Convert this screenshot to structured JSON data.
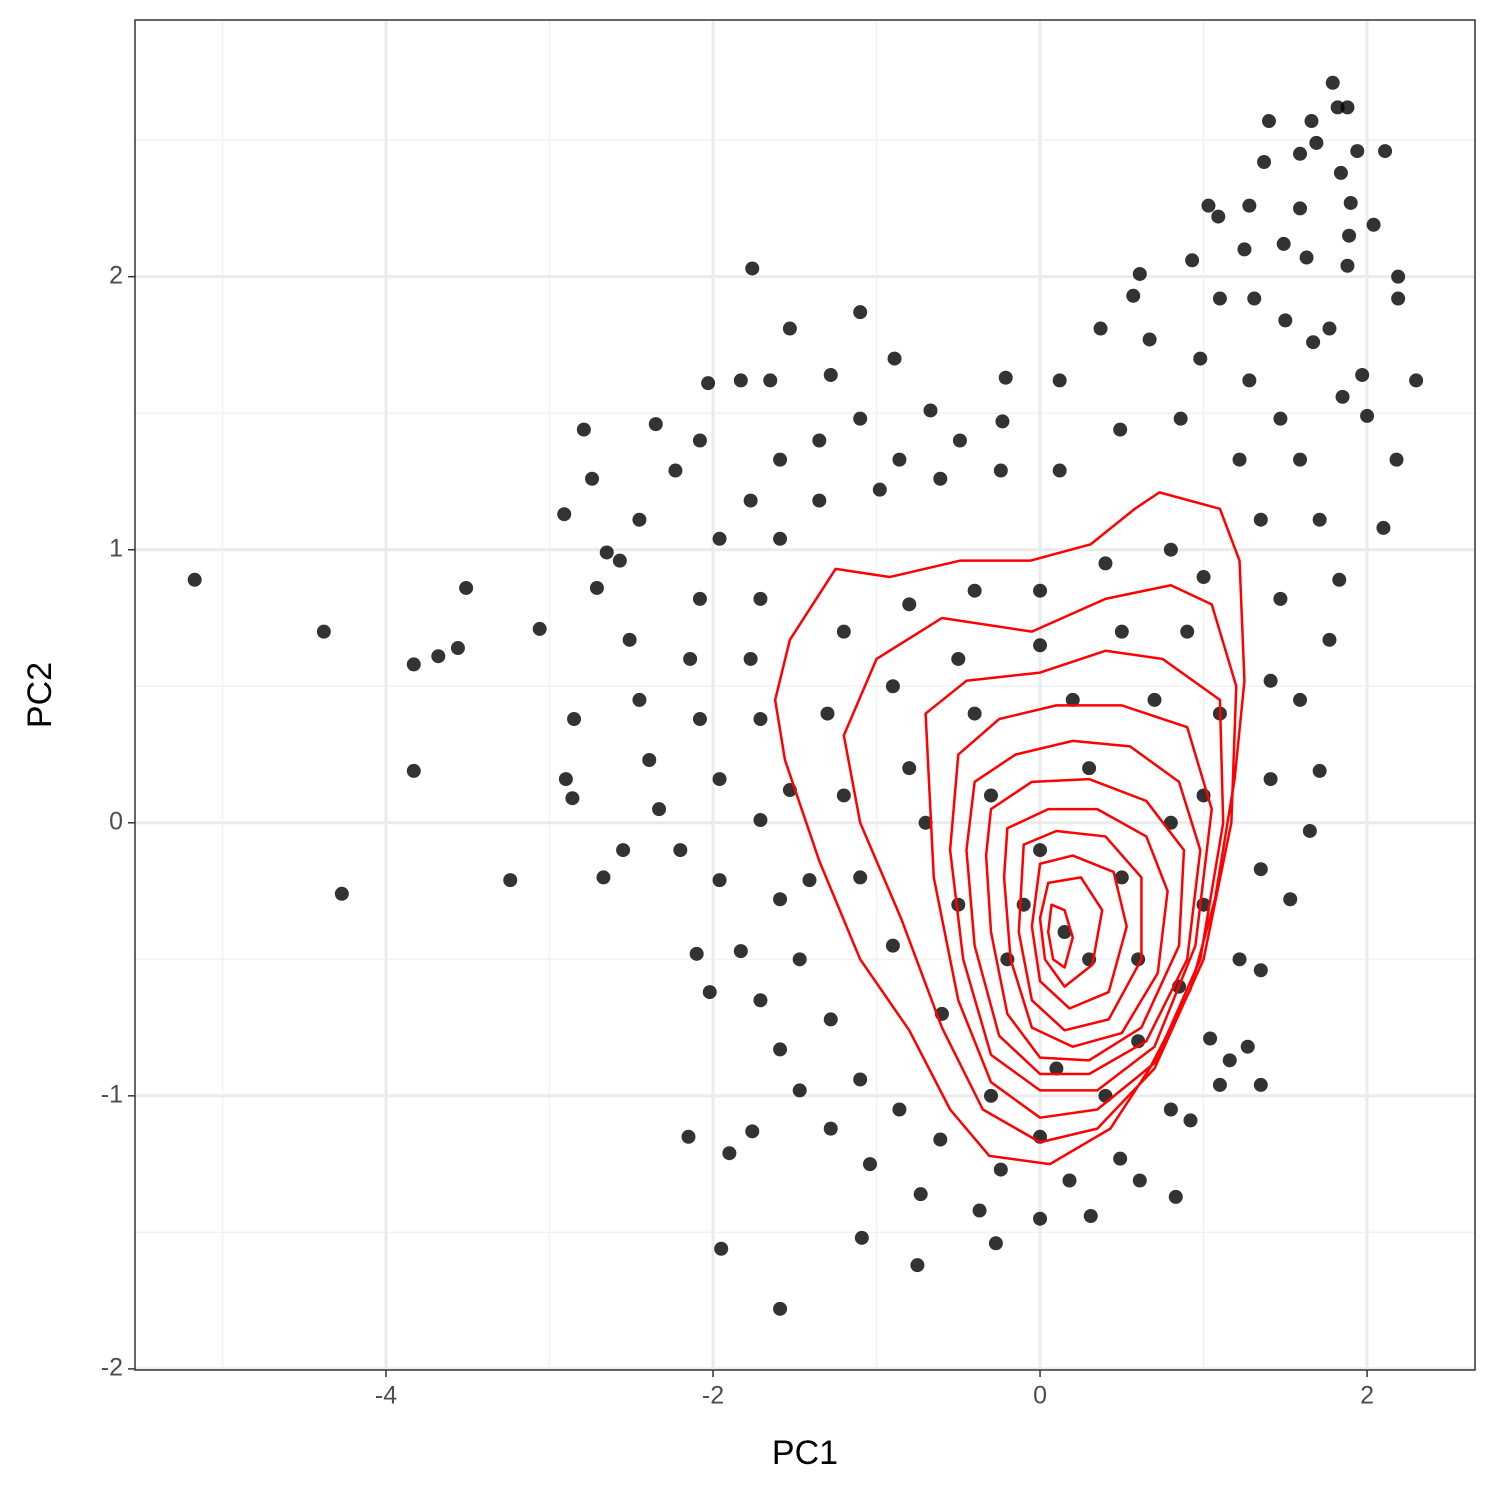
{
  "chart_data": {
    "type": "scatter",
    "x_label": "PC1",
    "y_label": "PC2",
    "xlim": [
      -5.535,
      2.66
    ],
    "ylim": [
      -2.004,
      2.94
    ],
    "xticks": [
      -4,
      -2,
      0,
      2
    ],
    "yticks": [
      -2,
      -1,
      0,
      1,
      2
    ],
    "grid": true,
    "color": "#000000",
    "contour_color": "#ff0000",
    "x": [
      -5.17,
      -4.38,
      -3.83,
      -3.68,
      -3.56,
      -3.51,
      -3.83,
      -4.27,
      -3.24,
      -3.06,
      -2.91,
      -2.79,
      -2.74,
      -2.85,
      -2.9,
      -2.86,
      -2.67,
      -2.55,
      -2.65,
      -2.71,
      -2.35,
      -1.76,
      -1.59,
      -1.95,
      -2.15,
      -2.02,
      -2.1,
      -1.9,
      -1.76,
      -1.09,
      -0.75,
      -0.27,
      0.83,
      1.35,
      1.27,
      1.1,
      1.79,
      1.82,
      1.88,
      1.4,
      1.66,
      1.94,
      2.11,
      1.37,
      1.59,
      1.69,
      1.84,
      1.03,
      1.09,
      1.28,
      1.59,
      1.9,
      2.04,
      1.89,
      1.25,
      1.49,
      1.63,
      1.88,
      2.19,
      2.19,
      2.3,
      2.18,
      2.1,
      2.0,
      1.97,
      1.77,
      1.1,
      0.61,
      0.57,
      0.93,
      1.31,
      1.67,
      1.5,
      1.85,
      -1.83,
      -1.65,
      -1.53,
      -1.1,
      -0.89,
      -1.28,
      -2.03,
      -2.08,
      -2.23,
      -2.45,
      -2.57,
      -2.51,
      -2.45,
      -2.39,
      -2.33,
      -2.2,
      -1.96,
      -1.83,
      -1.71,
      -1.59,
      -1.47,
      -1.28,
      -1.04,
      -0.73,
      -0.37,
      0.0,
      0.31,
      0.61,
      0.92,
      1.16,
      1.35,
      1.53,
      1.65,
      1.71,
      1.59,
      1.77,
      1.83,
      1.71,
      1.59,
      1.47,
      1.28,
      0.98,
      0.67,
      0.37,
      0.12,
      -0.21,
      -0.23,
      -0.49,
      -0.67,
      -0.86,
      -1.1,
      -1.35,
      -1.59,
      -1.77,
      -1.96,
      -2.08,
      -2.14,
      -2.08,
      -1.96,
      -1.71,
      -1.59,
      -1.47,
      -1.28,
      -1.1,
      -0.86,
      -0.61,
      -0.24,
      0.18,
      0.49,
      0.8,
      1.04,
      1.22,
      1.35,
      1.41,
      1.41,
      1.47,
      1.35,
      1.22,
      0.86,
      0.49,
      0.12,
      -0.24,
      -0.61,
      -0.98,
      -1.35,
      -1.59,
      -1.71,
      -1.77,
      -1.71,
      -1.53,
      -1.41,
      -1.2,
      -0.8,
      -0.4,
      0.0,
      0.4,
      0.8,
      1.0,
      -1.3,
      -0.9,
      -0.5,
      0.0,
      0.5,
      0.9,
      1.1,
      -1.2,
      -0.8,
      -0.4,
      0.2,
      0.7,
      1.0,
      -1.1,
      -0.7,
      -0.3,
      0.3,
      0.8,
      1.0,
      -0.9,
      -0.5,
      0.0,
      0.5,
      0.85,
      -0.6,
      -0.2,
      0.3,
      0.6,
      -0.3,
      0.1,
      0.4,
      0.0,
      -0.1,
      0.15,
      0.6
    ],
    "y": [
      0.89,
      0.7,
      0.58,
      0.61,
      0.64,
      0.86,
      0.19,
      -0.26,
      -0.21,
      0.71,
      1.13,
      1.44,
      1.26,
      0.38,
      0.16,
      0.09,
      -0.2,
      -0.1,
      0.99,
      0.86,
      1.46,
      2.03,
      -1.78,
      -1.56,
      -1.15,
      -0.62,
      -0.48,
      -1.21,
      -1.13,
      -1.52,
      -1.62,
      -1.54,
      -1.37,
      -0.96,
      -0.82,
      -0.96,
      2.71,
      2.62,
      2.62,
      2.57,
      2.57,
      2.46,
      2.46,
      2.42,
      2.45,
      2.49,
      2.38,
      2.26,
      2.22,
      2.26,
      2.25,
      2.27,
      2.19,
      2.15,
      2.1,
      2.12,
      2.07,
      2.04,
      2.0,
      1.92,
      1.62,
      1.33,
      1.08,
      1.49,
      1.64,
      1.81,
      1.92,
      2.01,
      1.93,
      2.06,
      1.92,
      1.76,
      1.84,
      1.56,
      1.62,
      1.62,
      1.81,
      1.87,
      1.7,
      1.64,
      1.61,
      1.4,
      1.29,
      1.11,
      0.96,
      0.67,
      0.45,
      0.23,
      0.05,
      -0.1,
      -0.21,
      -0.47,
      -0.65,
      -0.83,
      -0.98,
      -1.12,
      -1.25,
      -1.36,
      -1.42,
      -1.45,
      -1.44,
      -1.31,
      -1.09,
      -0.87,
      -0.54,
      -0.28,
      -0.03,
      0.19,
      0.45,
      0.67,
      0.89,
      1.11,
      1.33,
      1.48,
      1.62,
      1.7,
      1.77,
      1.81,
      1.62,
      1.63,
      1.47,
      1.4,
      1.51,
      1.33,
      1.48,
      1.4,
      1.33,
      1.18,
      1.04,
      0.82,
      0.6,
      0.38,
      0.16,
      0.01,
      -0.28,
      -0.5,
      -0.72,
      -0.94,
      -1.05,
      -1.16,
      -1.27,
      -1.31,
      -1.23,
      -1.05,
      -0.79,
      -0.5,
      -0.17,
      0.16,
      0.52,
      0.82,
      1.11,
      1.33,
      1.48,
      1.44,
      1.29,
      1.29,
      1.26,
      1.22,
      1.18,
      1.04,
      0.82,
      0.6,
      0.38,
      0.12,
      -0.21,
      0.7,
      0.8,
      0.85,
      0.85,
      0.95,
      1.0,
      0.9,
      0.4,
      0.5,
      0.6,
      0.65,
      0.7,
      0.7,
      0.4,
      0.1,
      0.2,
      0.4,
      0.45,
      0.45,
      0.1,
      -0.2,
      0.0,
      0.1,
      0.2,
      0.0,
      -0.3,
      -0.45,
      -0.3,
      -0.1,
      -0.2,
      -0.6,
      -0.7,
      -0.5,
      -0.5,
      -0.8,
      -1.0,
      -0.9,
      -1.0,
      -1.15,
      -0.3,
      -0.4,
      -0.5
    ],
    "contours": [
      {
        "x": [
          -1.62,
          -1.53,
          -1.25,
          -0.92,
          -0.49,
          -0.06,
          0.31,
          0.58,
          0.73,
          1.1,
          1.22,
          1.25,
          1.19,
          1.07,
          0.92,
          0.67,
          0.43,
          0.06,
          -0.31,
          -0.55,
          -0.8,
          -1.1,
          -1.35,
          -1.56
        ],
        "y": [
          0.45,
          0.67,
          0.93,
          0.9,
          0.96,
          0.96,
          1.02,
          1.15,
          1.21,
          1.15,
          0.96,
          0.52,
          0.16,
          -0.28,
          -0.61,
          -0.9,
          -1.12,
          -1.25,
          -1.22,
          -1.05,
          -0.76,
          -0.5,
          -0.14,
          0.23
        ]
      },
      {
        "x": [
          -1.2,
          -1.0,
          -0.6,
          -0.05,
          0.4,
          0.8,
          1.05,
          1.2,
          1.17,
          1.0,
          0.7,
          0.35,
          0.0,
          -0.35,
          -0.6,
          -0.85,
          -1.1
        ],
        "y": [
          0.32,
          0.6,
          0.75,
          0.7,
          0.82,
          0.87,
          0.8,
          0.5,
          0.0,
          -0.5,
          -0.9,
          -1.12,
          -1.17,
          -1.05,
          -0.75,
          -0.35,
          0.0
        ]
      },
      {
        "x": [
          -0.7,
          -0.45,
          0.0,
          0.4,
          0.75,
          1.1,
          1.12,
          0.98,
          0.7,
          0.35,
          0.0,
          -0.3,
          -0.5,
          -0.65
        ],
        "y": [
          0.4,
          0.52,
          0.55,
          0.63,
          0.6,
          0.45,
          0.0,
          -0.5,
          -0.88,
          -1.05,
          -1.08,
          -0.95,
          -0.65,
          -0.2
        ]
      },
      {
        "x": [
          -0.5,
          -0.25,
          0.1,
          0.5,
          0.9,
          1.05,
          0.95,
          0.7,
          0.35,
          0.0,
          -0.3,
          -0.47,
          -0.55
        ],
        "y": [
          0.25,
          0.38,
          0.43,
          0.43,
          0.35,
          0.05,
          -0.45,
          -0.82,
          -0.98,
          -0.98,
          -0.85,
          -0.5,
          -0.1
        ]
      },
      {
        "x": [
          -0.4,
          -0.15,
          0.2,
          0.55,
          0.85,
          0.98,
          0.9,
          0.65,
          0.3,
          0.0,
          -0.25,
          -0.4,
          -0.45
        ],
        "y": [
          0.15,
          0.25,
          0.3,
          0.28,
          0.15,
          -0.1,
          -0.5,
          -0.8,
          -0.92,
          -0.92,
          -0.78,
          -0.45,
          -0.1
        ]
      },
      {
        "x": [
          -0.3,
          -0.05,
          0.3,
          0.65,
          0.88,
          0.85,
          0.62,
          0.3,
          0.0,
          -0.2,
          -0.3,
          -0.33
        ],
        "y": [
          0.05,
          0.15,
          0.16,
          0.08,
          -0.1,
          -0.45,
          -0.75,
          -0.87,
          -0.86,
          -0.7,
          -0.4,
          -0.12
        ]
      },
      {
        "x": [
          -0.2,
          0.05,
          0.35,
          0.65,
          0.78,
          0.72,
          0.5,
          0.2,
          -0.05,
          -0.18,
          -0.22
        ],
        "y": [
          -0.02,
          0.05,
          0.05,
          -0.05,
          -0.25,
          -0.55,
          -0.77,
          -0.82,
          -0.75,
          -0.5,
          -0.2
        ]
      },
      {
        "x": [
          -0.1,
          0.1,
          0.4,
          0.62,
          0.62,
          0.42,
          0.15,
          -0.05,
          -0.13
        ],
        "y": [
          -0.08,
          -0.03,
          -0.05,
          -0.2,
          -0.5,
          -0.72,
          -0.76,
          -0.65,
          -0.4
        ]
      },
      {
        "x": [
          0.0,
          0.2,
          0.45,
          0.53,
          0.42,
          0.18,
          0.0,
          -0.05
        ],
        "y": [
          -0.15,
          -0.12,
          -0.18,
          -0.38,
          -0.62,
          -0.68,
          -0.58,
          -0.38
        ]
      },
      {
        "x": [
          0.05,
          0.25,
          0.38,
          0.32,
          0.15,
          0.03,
          0.0
        ],
        "y": [
          -0.22,
          -0.2,
          -0.32,
          -0.52,
          -0.6,
          -0.5,
          -0.35
        ]
      },
      {
        "x": [
          0.07,
          0.15,
          0.2,
          0.15,
          0.08,
          0.05
        ],
        "y": [
          -0.3,
          -0.32,
          -0.42,
          -0.53,
          -0.5,
          -0.4
        ]
      }
    ]
  }
}
